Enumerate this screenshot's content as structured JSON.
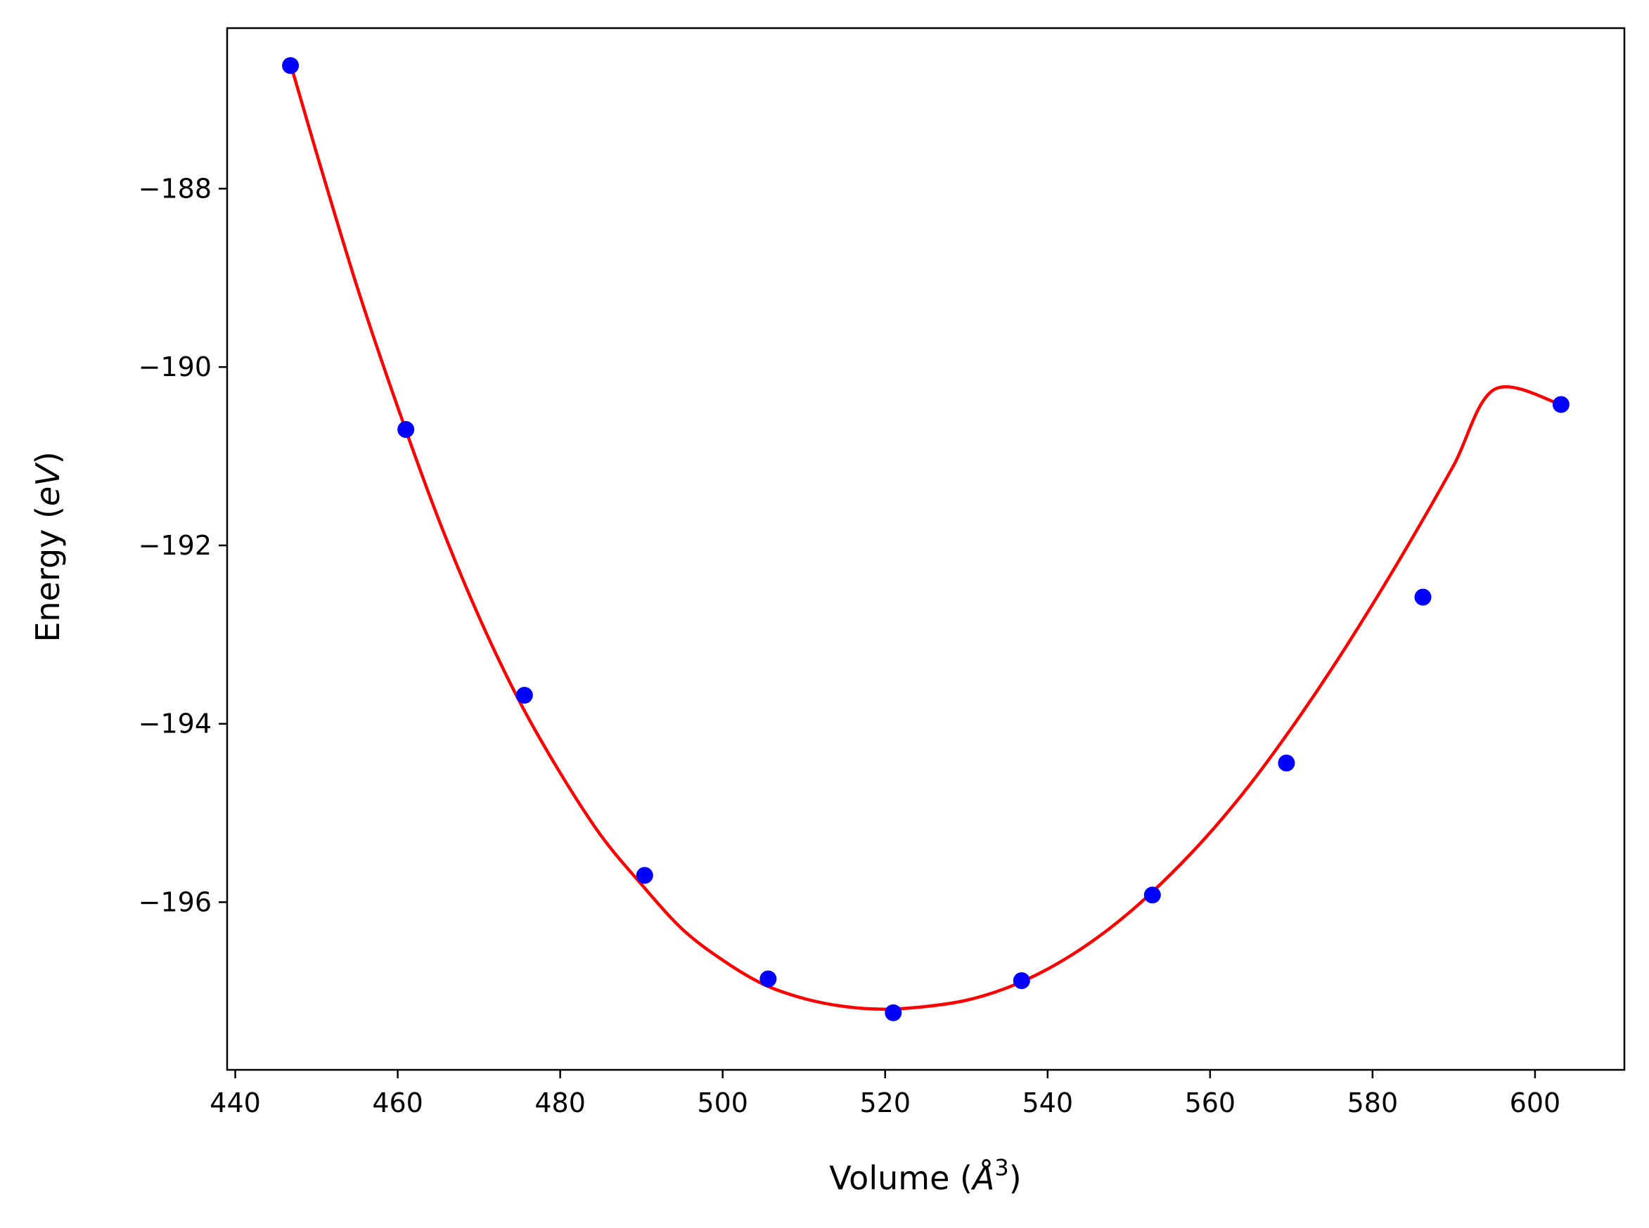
{
  "chart_data": {
    "type": "scatter",
    "xlabel": "Volume (Å³)",
    "xlabel_parts": {
      "main": "Volume (",
      "unit_base": "Å",
      "unit_exp": "3",
      "close": ")"
    },
    "ylabel": "Energy (eV)",
    "ylabel_parts": {
      "main": "Energy (",
      "unit": "eV",
      "close": ")"
    },
    "xlim": [
      439,
      611
    ],
    "ylim": [
      -197.88,
      -186.2
    ],
    "x_ticks": [
      440,
      460,
      480,
      500,
      520,
      540,
      560,
      580,
      600
    ],
    "x_tick_labels": [
      "440",
      "460",
      "480",
      "500",
      "520",
      "540",
      "560",
      "580",
      "600"
    ],
    "y_ticks": [
      -188,
      -190,
      -192,
      -194,
      -196
    ],
    "y_tick_labels": [
      "−188",
      "−190",
      "−192",
      "−194",
      "−196"
    ],
    "grid": false,
    "series": [
      {
        "kind": "points",
        "color": "#0000ff",
        "x": [
          446.8,
          461.0,
          475.6,
          490.4,
          505.6,
          521.0,
          536.8,
          552.9,
          569.4,
          586.2,
          603.2
        ],
        "y": [
          -186.62,
          -190.7,
          -193.68,
          -195.7,
          -196.86,
          -197.24,
          -196.88,
          -195.92,
          -194.44,
          -192.58,
          -190.42
        ]
      },
      {
        "kind": "fit-curve",
        "color": "#ff0000",
        "x": [
          446.8,
          450,
          455,
          460,
          465,
          470,
          475,
          480,
          485,
          490,
          495,
          500,
          505,
          510,
          515,
          520,
          525,
          530,
          535,
          540,
          545,
          550,
          555,
          560,
          565,
          570,
          575,
          580,
          585,
          590,
          595,
          603.2
        ],
        "y": [
          -186.6,
          -187.6,
          -189.1,
          -190.45,
          -191.7,
          -192.8,
          -193.75,
          -194.55,
          -195.25,
          -195.8,
          -196.3,
          -196.65,
          -196.92,
          -197.08,
          -197.17,
          -197.2,
          -197.17,
          -197.1,
          -196.96,
          -196.75,
          -196.47,
          -196.12,
          -195.7,
          -195.22,
          -194.67,
          -194.05,
          -193.38,
          -192.66,
          -191.9,
          -191.1,
          -190.25,
          -190.42
        ]
      }
    ]
  }
}
